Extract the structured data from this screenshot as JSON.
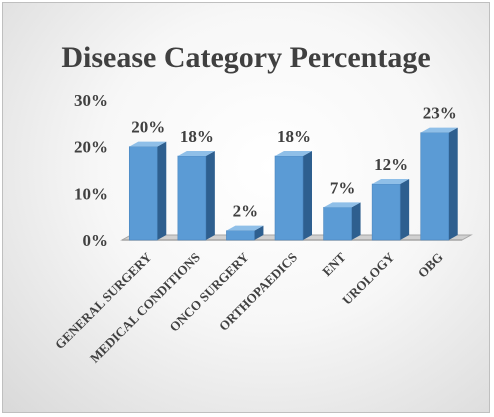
{
  "chart_data": {
    "type": "bar",
    "title": "Disease Category Percentage",
    "categories": [
      "GENERAL SURGERY",
      "MEDICAL CONDITIONS",
      "ONCO SURGERY",
      "ORTHOPAEDICS",
      "ENT",
      "UROLOGY",
      "OBG"
    ],
    "values": [
      20,
      18,
      2,
      18,
      7,
      12,
      23
    ],
    "data_labels": [
      "20%",
      "18%",
      "2%",
      "18%",
      "7%",
      "12%",
      "23%"
    ],
    "ylim": [
      0,
      30
    ],
    "yticks": [
      0,
      10,
      20,
      30
    ],
    "ytick_labels": [
      "0%",
      "10%",
      "20%",
      "30%"
    ],
    "xlabel": "",
    "ylabel": "",
    "grid": false,
    "legend": "none",
    "colors": {
      "bar_front": "#5b9bd5",
      "bar_side": "#2e5f8f",
      "bar_top": "#8fbfe8",
      "floor": "#a6a6a6",
      "text": "#404040"
    }
  }
}
